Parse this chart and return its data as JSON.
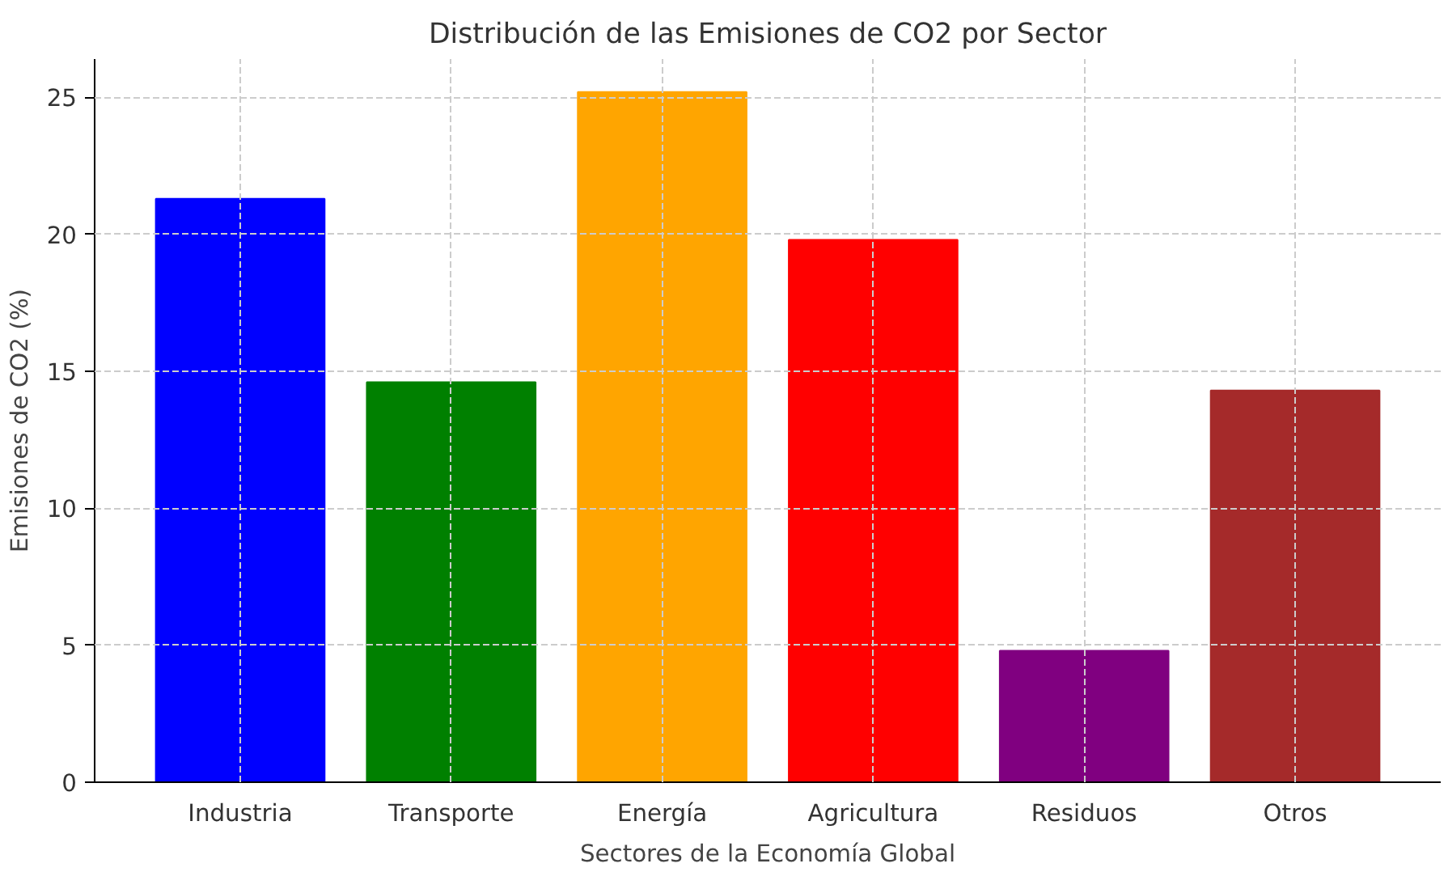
{
  "chart_data": {
    "type": "bar",
    "title": "Distribución de las Emisiones de CO2 por Sector",
    "xlabel": "Sectores de la Economía Global",
    "ylabel": "Emisiones de CO2 (%)",
    "categories": [
      "Industria",
      "Transporte",
      "Energía",
      "Agricultura",
      "Residuos",
      "Otros"
    ],
    "values": [
      21.3,
      14.6,
      25.2,
      19.8,
      4.8,
      14.3
    ],
    "colors": [
      "#0000ff",
      "#008000",
      "#ffa500",
      "#ff0000",
      "#800080",
      "#a52a2a"
    ],
    "ylim": [
      0,
      26.4
    ],
    "yticks": [
      0,
      5,
      10,
      15,
      20,
      25
    ],
    "grid": true
  }
}
